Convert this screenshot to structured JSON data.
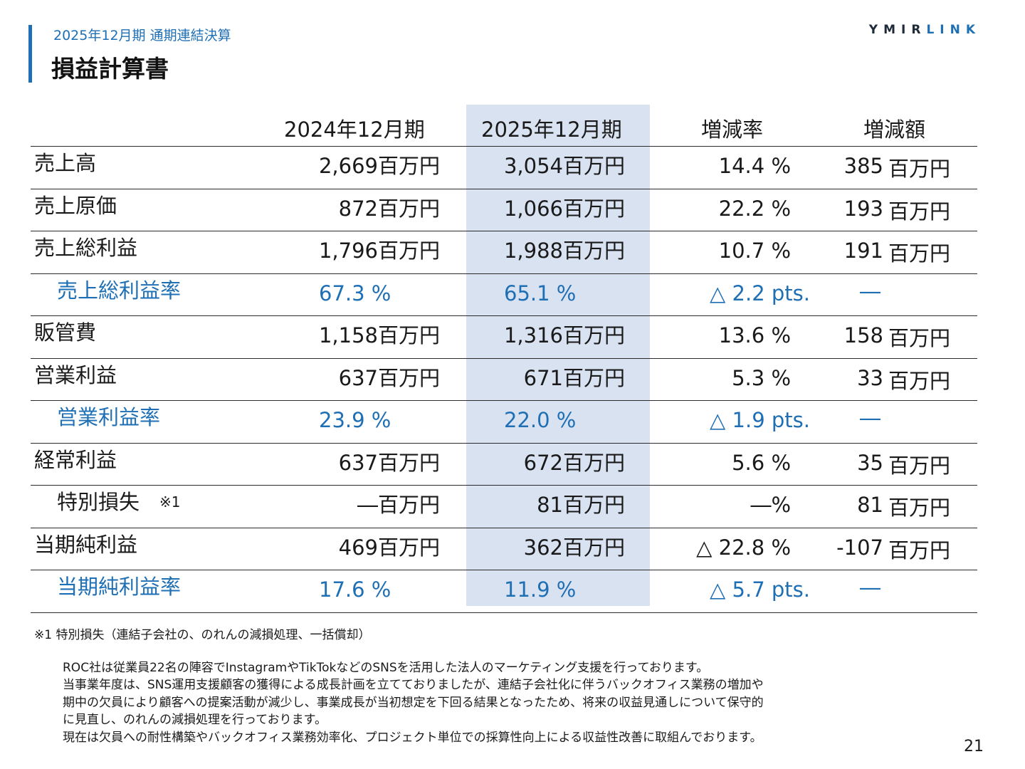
{
  "header": {
    "subtitle": "2025年12月期 通期連結決算",
    "title": "損益計算書",
    "logo_dark": "YMIR",
    "logo_blue": "LINK"
  },
  "table": {
    "columns": [
      "2024年12月期",
      "2025年12月期",
      "増減率",
      "増減額"
    ],
    "rows": [
      {
        "label": "売上高",
        "v2024": "2,669",
        "u2024": "百万円",
        "v2025": "3,054",
        "u2025": "百万円",
        "rate": "14.4",
        "rate_unit": "%",
        "diff": "385",
        "diff_unit": "百万円"
      },
      {
        "label": "売上原価",
        "v2024": "872",
        "u2024": "百万円",
        "v2025": "1,066",
        "u2025": "百万円",
        "rate": "22.2",
        "rate_unit": "%",
        "diff": "193",
        "diff_unit": "百万円"
      },
      {
        "label": "売上総利益",
        "v2024": "1,796",
        "u2024": "百万円",
        "v2025": "1,988",
        "u2025": "百万円",
        "rate": "10.7",
        "rate_unit": "%",
        "diff": "191",
        "diff_unit": "百万円"
      },
      {
        "label": "売上総利益率",
        "v2024": "67.3 %",
        "v2025": "65.1 %",
        "rate": "△ 2.2 pts.",
        "diff": "―"
      },
      {
        "label": "販管費",
        "v2024": "1,158",
        "u2024": "百万円",
        "v2025": "1,316",
        "u2025": "百万円",
        "rate": "13.6",
        "rate_unit": "%",
        "diff": "158",
        "diff_unit": "百万円"
      },
      {
        "label": "営業利益",
        "v2024": "637",
        "u2024": "百万円",
        "v2025": "671",
        "u2025": "百万円",
        "rate": "5.3",
        "rate_unit": "%",
        "diff": "33",
        "diff_unit": "百万円"
      },
      {
        "label": "営業利益率",
        "v2024": "23.9 %",
        "v2025": "22.0 %",
        "rate": "△ 1.9 pts.",
        "diff": "―"
      },
      {
        "label": "経常利益",
        "v2024": "637",
        "u2024": "百万円",
        "v2025": "672",
        "u2025": "百万円",
        "rate": "5.6",
        "rate_unit": "%",
        "diff": "35",
        "diff_unit": "百万円"
      },
      {
        "label": "特別損失",
        "note": "※1",
        "v2024": "―",
        "u2024": "百万円",
        "v2025": "81",
        "u2025": "百万円",
        "rate": "―",
        "rate_unit": "%",
        "diff": "81",
        "diff_unit": "百万円"
      },
      {
        "label": "当期純利益",
        "v2024": "469",
        "u2024": "百万円",
        "v2025": "362",
        "u2025": "百万円",
        "rate": "△ 22.8",
        "rate_unit": "%",
        "diff": "-107",
        "diff_unit": "百万円"
      },
      {
        "label": "当期純利益率",
        "v2024": "17.6 %",
        "v2025": "11.9 %",
        "rate": "△ 5.7 pts.",
        "diff": "―"
      }
    ]
  },
  "footnote": "※1 特別損失（連結子会社の、のれんの減損処理、一括償却）",
  "description": [
    "ROC社は従業員22名の陣容でInstagramやTikTokなどのSNSを活用した法人のマーケティング支援を行っております。",
    "当事業年度は、SNS運用支援顧客の獲得による成長計画を立てておりましたが、連結子会社化に伴うバックオフィス業務の増加や",
    "期中の欠員により顧客への提案活動が減少し、事業成長が当初想定を下回る結果となったため、将来の収益見通しについて保守的",
    "に見直し、のれんの減損処理を行っております。",
    "現在は欠員への耐性構築やバックオフィス業務効率化、プロジェクト単位での採算性向上による収益性改善に取組んでおります。"
  ],
  "page_number": "21",
  "colors": {
    "accent": "#1f6fb5",
    "highlight": "#d9e2f1",
    "text": "#1a1a1a"
  }
}
